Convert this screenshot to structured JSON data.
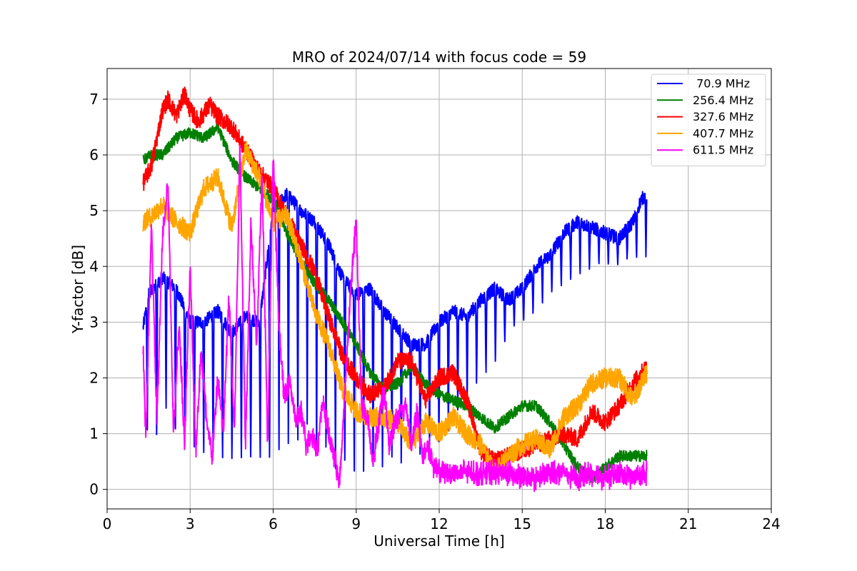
{
  "chart_data": {
    "type": "line",
    "title": "MRO of 2024/07/14 with focus code = 59",
    "xlabel": "Universal Time [h]",
    "ylabel": "Y-factor [dB]",
    "xlim": [
      0,
      24
    ],
    "ylim": [
      -0.35,
      7.55
    ],
    "xticks": [
      0,
      3,
      6,
      9,
      12,
      15,
      18,
      21,
      24
    ],
    "yticks": [
      0,
      1,
      2,
      3,
      4,
      5,
      6,
      7
    ],
    "grid": true,
    "legend_position": "upper right",
    "series": [
      {
        "name": " 70.9 MHz",
        "color": "#0000ff",
        "x": [
          1.3,
          1.5,
          2.0,
          2.5,
          3.0,
          3.5,
          4.0,
          4.5,
          5.0,
          5.5,
          6.0,
          6.5,
          7.0,
          7.5,
          8.0,
          8.5,
          9.0,
          9.5,
          10.0,
          10.5,
          11.0,
          11.5,
          12.0,
          12.5,
          13.0,
          13.5,
          14.0,
          14.5,
          15.0,
          15.5,
          16.0,
          16.5,
          17.0,
          17.5,
          18.0,
          18.5,
          19.0,
          19.3,
          19.5
        ],
        "values": [
          2.9,
          3.5,
          3.8,
          3.6,
          3.0,
          3.0,
          3.2,
          2.8,
          3.1,
          3.0,
          5.0,
          5.3,
          5.0,
          4.8,
          4.4,
          3.8,
          3.5,
          3.6,
          3.2,
          2.9,
          2.6,
          2.6,
          3.0,
          3.2,
          3.1,
          3.4,
          3.6,
          3.4,
          3.6,
          4.0,
          4.2,
          4.6,
          4.8,
          4.7,
          4.6,
          4.5,
          4.8,
          5.2,
          5.3
        ],
        "dips": {
          "start": 1.45,
          "step": 0.34,
          "end": 19.5,
          "bottom_values": [
            0.9,
            0.8,
            1.3,
            0.9,
            0.9,
            0.6,
            0.5,
            0.5,
            0.4,
            0.4,
            0.4,
            0.4,
            0.4,
            0.3,
            0.4,
            0.5,
            0.6,
            0.9,
            0.4,
            0.5,
            0.1,
            0.3,
            0.1,
            0.1,
            0.2,
            0.2,
            0.4,
            0.3,
            0.6,
            0.5,
            0.6,
            0.7,
            0.9,
            1.3,
            1.5,
            1.8,
            2.0,
            2.2,
            2.6,
            2.9,
            3.0,
            3.1,
            3.3,
            3.5,
            3.6,
            3.7,
            3.8,
            3.9,
            4.0,
            4.0,
            4.0,
            4.1,
            4.1,
            4.1
          ]
        }
      },
      {
        "name": "256.4 MHz",
        "color": "#008000",
        "x": [
          1.3,
          1.6,
          2.0,
          2.5,
          3.0,
          3.5,
          4.0,
          4.5,
          5.0,
          5.5,
          6.0,
          6.5,
          7.0,
          7.5,
          8.0,
          8.5,
          9.0,
          9.5,
          10.0,
          10.5,
          11.0,
          11.5,
          12.0,
          12.5,
          13.0,
          13.5,
          14.0,
          14.5,
          15.0,
          15.5,
          16.0,
          16.5,
          17.0,
          17.5,
          18.0,
          18.5,
          19.0,
          19.5
        ],
        "values": [
          5.9,
          6.0,
          6.0,
          6.3,
          6.4,
          6.3,
          6.5,
          5.9,
          5.6,
          5.4,
          5.2,
          4.6,
          4.1,
          3.7,
          3.4,
          3.0,
          2.6,
          2.1,
          1.8,
          1.9,
          2.2,
          1.9,
          1.7,
          1.6,
          1.5,
          1.3,
          1.1,
          1.3,
          1.5,
          1.5,
          1.2,
          0.8,
          0.4,
          0.2,
          0.4,
          0.6,
          0.6,
          0.6
        ]
      },
      {
        "name": "327.6 MHz",
        "color": "#ff0000",
        "x": [
          1.3,
          1.6,
          2.0,
          2.2,
          2.5,
          2.8,
          3.0,
          3.3,
          3.7,
          4.0,
          4.5,
          5.0,
          5.5,
          6.0,
          6.5,
          7.0,
          7.5,
          8.0,
          8.5,
          9.0,
          9.5,
          10.0,
          10.5,
          11.0,
          11.5,
          12.0,
          12.5,
          13.0,
          13.5,
          14.0,
          14.5,
          15.0,
          15.5,
          16.0,
          16.5,
          17.0,
          17.5,
          18.0,
          18.5,
          19.0,
          19.5
        ],
        "values": [
          5.5,
          5.8,
          6.8,
          7.0,
          6.7,
          7.1,
          6.8,
          6.6,
          6.9,
          6.7,
          6.5,
          6.1,
          5.7,
          5.4,
          4.9,
          4.4,
          3.9,
          3.1,
          2.4,
          2.0,
          1.7,
          1.8,
          2.3,
          2.3,
          1.6,
          2.0,
          2.1,
          1.6,
          0.7,
          0.5,
          0.6,
          0.7,
          0.8,
          0.9,
          1.0,
          0.9,
          1.4,
          1.2,
          1.5,
          1.9,
          2.2
        ]
      },
      {
        "name": "407.7 MHz",
        "color": "#ffa500",
        "x": [
          1.3,
          1.6,
          2.0,
          2.5,
          3.0,
          3.5,
          4.0,
          4.5,
          5.0,
          5.5,
          6.0,
          6.5,
          7.0,
          7.5,
          8.0,
          8.5,
          9.0,
          9.5,
          10.0,
          10.5,
          11.0,
          11.5,
          12.0,
          12.5,
          13.0,
          13.5,
          14.0,
          14.5,
          15.0,
          15.5,
          16.0,
          16.5,
          17.0,
          17.5,
          18.0,
          18.5,
          19.0,
          19.5
        ],
        "values": [
          4.8,
          4.9,
          5.1,
          4.8,
          4.6,
          5.4,
          5.6,
          4.7,
          6.1,
          5.6,
          4.8,
          4.9,
          4.1,
          3.2,
          2.6,
          1.8,
          1.4,
          1.3,
          1.3,
          1.2,
          0.8,
          1.2,
          1.0,
          1.3,
          1.0,
          0.8,
          0.3,
          0.6,
          0.8,
          0.9,
          0.7,
          1.3,
          1.5,
          1.9,
          2.0,
          2.0,
          1.6,
          2.1
        ]
      },
      {
        "name": "611.5 MHz",
        "color": "#ff00ff",
        "x": [
          1.3,
          1.4,
          1.6,
          1.8,
          2.0,
          2.2,
          2.4,
          2.6,
          2.8,
          3.0,
          3.2,
          3.4,
          3.6,
          3.8,
          4.0,
          4.2,
          4.4,
          4.6,
          4.8,
          5.0,
          5.2,
          5.4,
          5.6,
          5.8,
          6.0,
          6.2,
          6.4,
          6.6,
          6.8,
          7.0,
          7.2,
          7.4,
          7.6,
          7.8,
          8.0,
          8.2,
          8.4,
          8.6,
          8.8,
          9.0,
          9.2,
          9.4,
          9.6,
          9.8,
          10.0,
          10.2,
          10.4,
          10.6,
          10.8,
          11.0,
          11.2,
          11.4,
          11.6,
          11.8,
          12.0,
          12.5,
          13.0,
          13.5,
          14.0,
          14.5,
          15.0,
          15.5,
          16.0,
          16.5,
          17.0,
          17.5,
          18.0,
          18.5,
          19.0,
          19.5
        ],
        "values": [
          2.6,
          0.9,
          4.8,
          1.2,
          4.5,
          5.5,
          1.0,
          3.0,
          0.8,
          4.0,
          0.7,
          2.5,
          1.2,
          0.6,
          2.0,
          1.0,
          3.5,
          1.0,
          6.2,
          0.8,
          4.8,
          2.5,
          5.7,
          0.8,
          6.0,
          3.0,
          1.6,
          2.0,
          1.2,
          1.4,
          0.8,
          1.0,
          0.7,
          1.6,
          1.0,
          0.6,
          0.1,
          1.8,
          3.6,
          4.8,
          1.5,
          1.3,
          0.5,
          1.1,
          1.8,
          0.8,
          1.2,
          1.4,
          1.5,
          0.8,
          1.4,
          0.6,
          0.8,
          0.4,
          0.3,
          0.3,
          0.3,
          0.3,
          0.3,
          0.3,
          0.2,
          0.2,
          0.3,
          0.3,
          0.2,
          0.3,
          0.2,
          0.3,
          0.2,
          0.3
        ]
      }
    ]
  }
}
